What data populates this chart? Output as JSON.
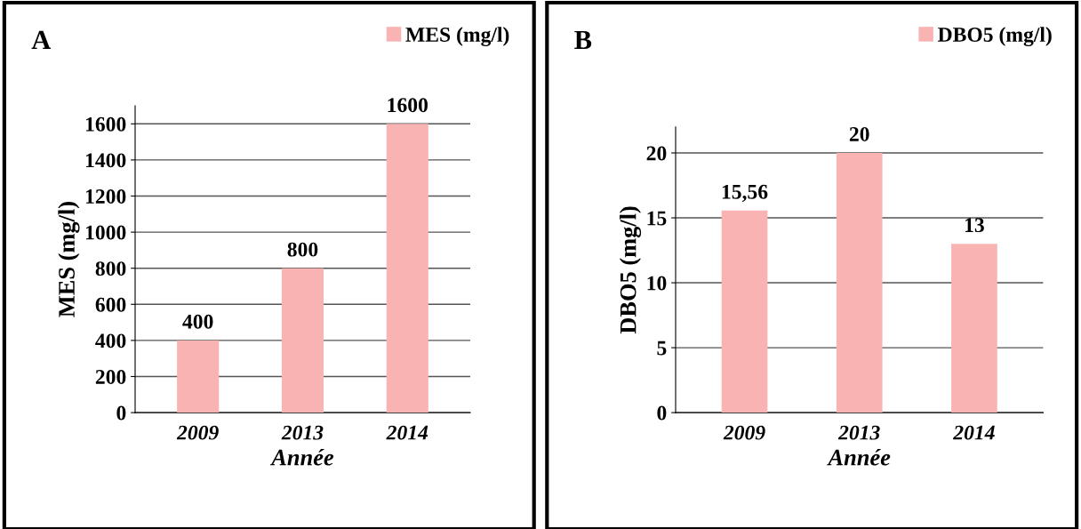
{
  "chart_data": [
    {
      "type": "bar",
      "title": "A",
      "xlabel": "Année",
      "ylabel": "MES (mg/l)",
      "categories": [
        "2009",
        "2013",
        "2014"
      ],
      "series": [
        {
          "name": "MES (mg/l)",
          "color": "#f9b3b3",
          "values": [
            400,
            800,
            1600
          ]
        }
      ],
      "ylim": [
        0,
        1700
      ],
      "yticks": [
        0,
        200,
        400,
        600,
        800,
        1000,
        1200,
        1400,
        1600
      ],
      "grid": "y",
      "legend": "top right",
      "data_labels": true
    },
    {
      "type": "bar",
      "title": "B",
      "xlabel": "Année",
      "ylabel": "DBO5 (mg/l)",
      "categories": [
        "2009",
        "2013",
        "2014"
      ],
      "series": [
        {
          "name": "DBO5 (mg/l)",
          "color": "#f9b3b3",
          "values": [
            15.56,
            20,
            13
          ],
          "value_labels": [
            "15,56",
            "20",
            "13"
          ]
        }
      ],
      "ylim": [
        0,
        22
      ],
      "yticks": [
        0,
        5,
        10,
        15,
        20
      ],
      "grid": "y",
      "legend": "top right"
    }
  ]
}
